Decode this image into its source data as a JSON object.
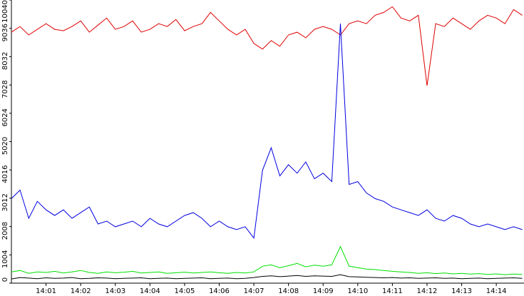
{
  "chart_data": {
    "type": "line",
    "x": [
      0,
      0.25,
      0.5,
      0.75,
      1,
      1.25,
      1.5,
      1.75,
      2,
      2.25,
      2.5,
      2.75,
      3,
      3.25,
      3.5,
      3.75,
      4,
      4.25,
      4.5,
      4.75,
      5,
      5.25,
      5.5,
      5.75,
      6,
      6.25,
      6.5,
      6.75,
      7,
      7.25,
      7.5,
      7.75,
      8,
      8.25,
      8.5,
      8.75,
      9,
      9.25,
      9.5,
      9.75,
      10,
      10.25,
      10.5,
      10.75,
      11,
      11.25,
      11.5,
      11.75,
      12,
      12.25,
      12.5,
      12.75,
      13,
      13.25,
      13.5,
      13.75,
      14,
      14.25,
      14.5,
      14.75
    ],
    "series": [
      {
        "color": "#e00000",
        "values": [
          8900,
          9100,
          8800,
          9000,
          9200,
          9000,
          8950,
          9100,
          9300,
          8900,
          9150,
          9400,
          9000,
          9100,
          9300,
          8900,
          9000,
          9200,
          9100,
          9350,
          8950,
          9100,
          9200,
          9600,
          9300,
          9000,
          8800,
          9000,
          8500,
          8300,
          8600,
          8400,
          8800,
          8900,
          8700,
          9000,
          9100,
          9000,
          8800,
          9200,
          9300,
          9200,
          9500,
          9600,
          9800,
          9400,
          9300,
          9500,
          7000,
          9200,
          9100,
          9400,
          9200,
          9000,
          9300,
          9500,
          9400,
          9200,
          9700,
          9500
        ]
      },
      {
        "color": "#0000e0",
        "values": [
          3000,
          3300,
          2300,
          2900,
          2600,
          2400,
          2600,
          2300,
          2500,
          2700,
          2100,
          2200,
          2000,
          2100,
          2200,
          2000,
          2300,
          2100,
          2000,
          2200,
          2400,
          2500,
          2300,
          2000,
          2200,
          2000,
          1900,
          2000,
          1600,
          4000,
          4800,
          3800,
          4200,
          3900,
          4300,
          3700,
          3900,
          3600,
          9200,
          3500,
          3600,
          3200,
          3000,
          2900,
          2700,
          2600,
          2500,
          2400,
          2600,
          2300,
          2200,
          2400,
          2300,
          2100,
          2000,
          2100,
          2000,
          1900,
          2000,
          1900
        ]
      },
      {
        "color": "#00e000",
        "values": [
          400,
          450,
          350,
          400,
          380,
          420,
          360,
          400,
          450,
          380,
          350,
          400,
          370,
          390,
          420,
          360,
          380,
          400,
          350,
          370,
          390,
          360,
          380,
          400,
          370,
          350,
          380,
          360,
          400,
          600,
          650,
          550,
          620,
          700,
          580,
          640,
          600,
          650,
          1300,
          600,
          550,
          500,
          480,
          450,
          420,
          400,
          380,
          350,
          370,
          340,
          360,
          330,
          350,
          320,
          340,
          310,
          330,
          300,
          320,
          310
        ]
      },
      {
        "color": "#000000",
        "values": [
          150,
          200,
          180,
          160,
          190,
          170,
          180,
          200,
          160,
          170,
          190,
          180,
          160,
          170,
          180,
          190,
          160,
          170,
          180,
          160,
          170,
          180,
          190,
          160,
          170,
          180,
          160,
          170,
          200,
          240,
          260,
          230,
          250,
          270,
          240,
          260,
          250,
          240,
          300,
          230,
          220,
          210,
          200,
          190,
          200,
          180,
          190,
          170,
          180,
          190,
          170,
          180,
          160,
          170,
          180,
          160,
          170,
          180,
          190,
          170
        ]
      }
    ],
    "ylim": [
      0,
      10040
    ],
    "yticks": [
      0,
      1004,
      2008,
      3012,
      4016,
      5020,
      6024,
      7028,
      8032,
      9036,
      10040
    ],
    "xlim": [
      0,
      14.8
    ],
    "xticks": [
      {
        "value": 1,
        "label": "14:01"
      },
      {
        "value": 2,
        "label": "14:02"
      },
      {
        "value": 3,
        "label": "14:03"
      },
      {
        "value": 4,
        "label": "14:04"
      },
      {
        "value": 5,
        "label": "14:05"
      },
      {
        "value": 6,
        "label": "14:06"
      },
      {
        "value": 7,
        "label": "14:07"
      },
      {
        "value": 8,
        "label": "14:08"
      },
      {
        "value": 9,
        "label": "14:09"
      },
      {
        "value": 10,
        "label": "14:10"
      },
      {
        "value": 11,
        "label": "14:11"
      },
      {
        "value": 12,
        "label": "14:12"
      },
      {
        "value": 13,
        "label": "14:13"
      },
      {
        "value": 14,
        "label": "14:14"
      }
    ]
  }
}
